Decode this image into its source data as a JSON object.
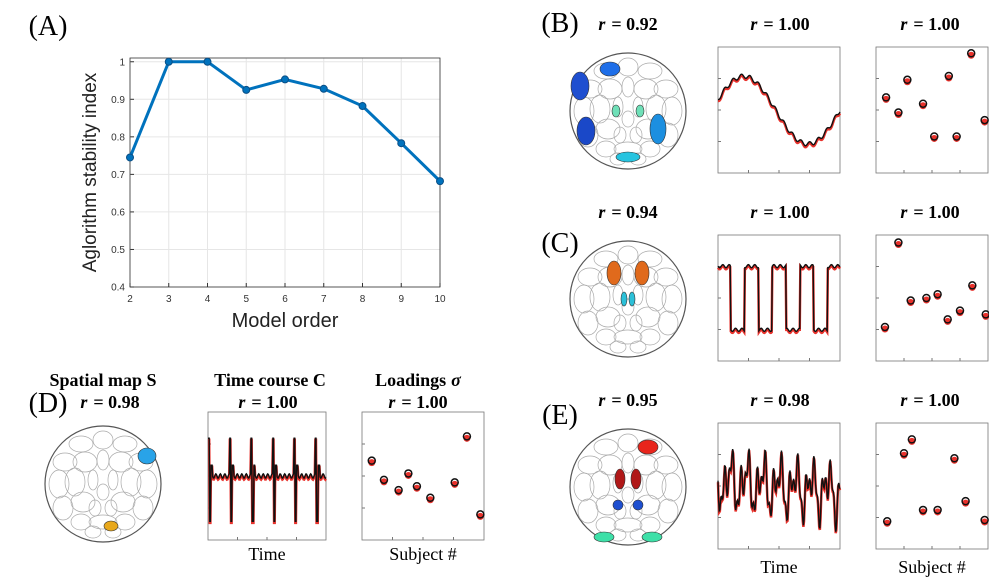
{
  "chart_data": {
    "type": "line",
    "xlabel": "Model order",
    "ylabel": "Aglorithm stability index",
    "x": [
      2,
      3,
      4,
      5,
      6,
      7,
      8,
      9,
      10
    ],
    "values": [
      0.745,
      1.0,
      1.0,
      0.925,
      0.953,
      0.928,
      0.882,
      0.783,
      0.682
    ],
    "color": "#0072bd",
    "xlim": [
      2,
      10
    ],
    "ylim": [
      0.4,
      1.01
    ],
    "xticks": [
      2,
      3,
      4,
      5,
      6,
      7,
      8,
      9,
      10
    ],
    "yticks": [
      0.4,
      0.5,
      0.6,
      0.7,
      0.8,
      0.9,
      1
    ],
    "grid": true
  },
  "panel_labels": [
    "(A)",
    "(B)",
    "(C)",
    "(D)",
    "(E)"
  ],
  "panels": {
    "B": [
      {
        "symbol": "r",
        "text": "= 0.92"
      },
      {
        "symbol": "r",
        "text": "= 1.00"
      },
      {
        "symbol": "r",
        "text": "= 1.00"
      }
    ],
    "C": [
      {
        "symbol": "r",
        "text": "= 0.94"
      },
      {
        "symbol": "r",
        "text": "= 1.00"
      },
      {
        "symbol": "r",
        "text": "= 1.00"
      }
    ],
    "D": [
      {
        "symbol": "r",
        "text": "= 0.98"
      },
      {
        "symbol": "r",
        "text": "= 1.00"
      },
      {
        "symbol": "r",
        "text": "= 1.00"
      }
    ],
    "E": [
      {
        "symbol": "r",
        "text": "= 0.95"
      },
      {
        "symbol": "r",
        "text": "= 0.98"
      },
      {
        "symbol": "r",
        "text": "= 1.00"
      }
    ]
  },
  "d_headers": [
    {
      "text": "Spatial map S"
    },
    {
      "text": "Time course C"
    },
    {
      "text": "Loadings",
      "symbol": "σ"
    }
  ],
  "bottom_labels": {
    "D": [
      "Time",
      "Subject #"
    ],
    "E": [
      "Time",
      "Subject #"
    ]
  }
}
